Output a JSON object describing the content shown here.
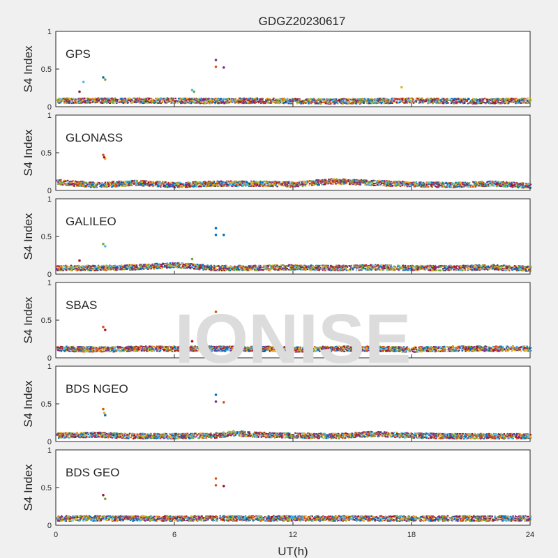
{
  "chart_data": {
    "type": "scatter",
    "title": "GDGZ20230617",
    "xlabel": "UT(h)",
    "ylabel": "S4 Index",
    "xlim": [
      0,
      24
    ],
    "ylim": [
      0,
      1
    ],
    "x_ticks": [
      0,
      6,
      12,
      18,
      24
    ],
    "y_ticks": [
      0,
      0.5,
      1
    ],
    "watermark": "IONISE",
    "grid": false,
    "colors": [
      "#0072BD",
      "#D95319",
      "#EDB120",
      "#7E2F8E",
      "#77AC30",
      "#4DBEEE",
      "#A2142F"
    ],
    "panels": [
      {
        "label": "GPS",
        "baseline": [
          [
            0,
            0.08
          ],
          [
            2,
            0.08
          ],
          [
            4,
            0.08
          ],
          [
            6,
            0.08
          ],
          [
            8,
            0.075
          ],
          [
            10,
            0.08
          ],
          [
            12,
            0.075
          ],
          [
            14,
            0.07
          ],
          [
            16,
            0.075
          ],
          [
            18,
            0.08
          ],
          [
            20,
            0.075
          ],
          [
            22,
            0.075
          ],
          [
            24,
            0.08
          ]
        ],
        "outliers": [
          {
            "x": 2.4,
            "y": 0.39,
            "c": 0
          },
          {
            "x": 2.5,
            "y": 0.36,
            "c": 4
          },
          {
            "x": 1.4,
            "y": 0.33,
            "c": 5
          },
          {
            "x": 8.1,
            "y": 0.62,
            "c": 3
          },
          {
            "x": 8.1,
            "y": 0.53,
            "c": 1
          },
          {
            "x": 8.5,
            "y": 0.52,
            "c": 3
          },
          {
            "x": 6.9,
            "y": 0.22,
            "c": 5
          },
          {
            "x": 7.0,
            "y": 0.2,
            "c": 4
          },
          {
            "x": 17.5,
            "y": 0.26,
            "c": 2
          },
          {
            "x": 1.2,
            "y": 0.2,
            "c": 6
          }
        ]
      },
      {
        "label": "GLONASS",
        "baseline": [
          [
            0,
            0.11
          ],
          [
            2,
            0.07
          ],
          [
            4,
            0.1
          ],
          [
            6,
            0.07
          ],
          [
            8,
            0.09
          ],
          [
            10,
            0.09
          ],
          [
            12,
            0.08
          ],
          [
            14,
            0.12
          ],
          [
            16,
            0.1
          ],
          [
            18,
            0.08
          ],
          [
            20,
            0.07
          ],
          [
            22,
            0.09
          ],
          [
            24,
            0.06
          ]
        ],
        "outliers": [
          {
            "x": 2.4,
            "y": 0.47,
            "c": 1
          },
          {
            "x": 2.5,
            "y": 0.42,
            "c": 2
          },
          {
            "x": 2.45,
            "y": 0.44,
            "c": 6
          }
        ]
      },
      {
        "label": "GALILEO",
        "baseline": [
          [
            0,
            0.08
          ],
          [
            2,
            0.08
          ],
          [
            4,
            0.09
          ],
          [
            6,
            0.12
          ],
          [
            8,
            0.08
          ],
          [
            10,
            0.08
          ],
          [
            12,
            0.09
          ],
          [
            14,
            0.08
          ],
          [
            16,
            0.09
          ],
          [
            18,
            0.08
          ],
          [
            20,
            0.08
          ],
          [
            22,
            0.09
          ],
          [
            24,
            0.07
          ]
        ],
        "outliers": [
          {
            "x": 2.4,
            "y": 0.4,
            "c": 4
          },
          {
            "x": 2.5,
            "y": 0.37,
            "c": 5
          },
          {
            "x": 8.1,
            "y": 0.61,
            "c": 0
          },
          {
            "x": 8.1,
            "y": 0.52,
            "c": 0
          },
          {
            "x": 8.5,
            "y": 0.52,
            "c": 0
          },
          {
            "x": 6.9,
            "y": 0.2,
            "c": 4
          },
          {
            "x": 1.2,
            "y": 0.18,
            "c": 6
          }
        ]
      },
      {
        "label": "SBAS",
        "baseline": [
          [
            0,
            0.12
          ],
          [
            2,
            0.11
          ],
          [
            4,
            0.12
          ],
          [
            6,
            0.12
          ],
          [
            8,
            0.12
          ],
          [
            10,
            0.12
          ],
          [
            12,
            0.11
          ],
          [
            14,
            0.12
          ],
          [
            16,
            0.12
          ],
          [
            18,
            0.11
          ],
          [
            20,
            0.12
          ],
          [
            22,
            0.12
          ],
          [
            24,
            0.12
          ]
        ],
        "outliers": [
          {
            "x": 2.4,
            "y": 0.41,
            "c": 1
          },
          {
            "x": 2.5,
            "y": 0.37,
            "c": 6
          },
          {
            "x": 8.1,
            "y": 0.61,
            "c": 1
          },
          {
            "x": 8.1,
            "y": 0.53,
            "c": 1
          },
          {
            "x": 8.5,
            "y": 0.52,
            "c": 1
          },
          {
            "x": 6.9,
            "y": 0.22,
            "c": 6
          },
          {
            "x": 7.2,
            "y": 0.24,
            "c": 1
          }
        ]
      },
      {
        "label": "BDS NGEO",
        "baseline": [
          [
            0,
            0.08
          ],
          [
            2,
            0.09
          ],
          [
            4,
            0.07
          ],
          [
            6,
            0.07
          ],
          [
            8,
            0.08
          ],
          [
            9,
            0.11
          ],
          [
            10,
            0.09
          ],
          [
            12,
            0.08
          ],
          [
            14,
            0.07
          ],
          [
            16,
            0.1
          ],
          [
            18,
            0.08
          ],
          [
            20,
            0.07
          ],
          [
            22,
            0.07
          ],
          [
            24,
            0.07
          ]
        ],
        "outliers": [
          {
            "x": 2.4,
            "y": 0.43,
            "c": 1
          },
          {
            "x": 2.5,
            "y": 0.35,
            "c": 0
          },
          {
            "x": 2.45,
            "y": 0.38,
            "c": 2
          },
          {
            "x": 8.1,
            "y": 0.62,
            "c": 0
          },
          {
            "x": 8.1,
            "y": 0.53,
            "c": 3
          },
          {
            "x": 8.5,
            "y": 0.52,
            "c": 1
          }
        ]
      },
      {
        "label": "BDS GEO",
        "baseline": [
          [
            0,
            0.09
          ],
          [
            4,
            0.09
          ],
          [
            8,
            0.09
          ],
          [
            12,
            0.09
          ],
          [
            16,
            0.09
          ],
          [
            20,
            0.09
          ],
          [
            24,
            0.09
          ]
        ],
        "outliers": [
          {
            "x": 2.4,
            "y": 0.4,
            "c": 6
          },
          {
            "x": 2.5,
            "y": 0.35,
            "c": 4
          },
          {
            "x": 8.1,
            "y": 0.62,
            "c": 1
          },
          {
            "x": 8.1,
            "y": 0.53,
            "c": 1
          },
          {
            "x": 8.5,
            "y": 0.52,
            "c": 6
          }
        ]
      }
    ]
  }
}
